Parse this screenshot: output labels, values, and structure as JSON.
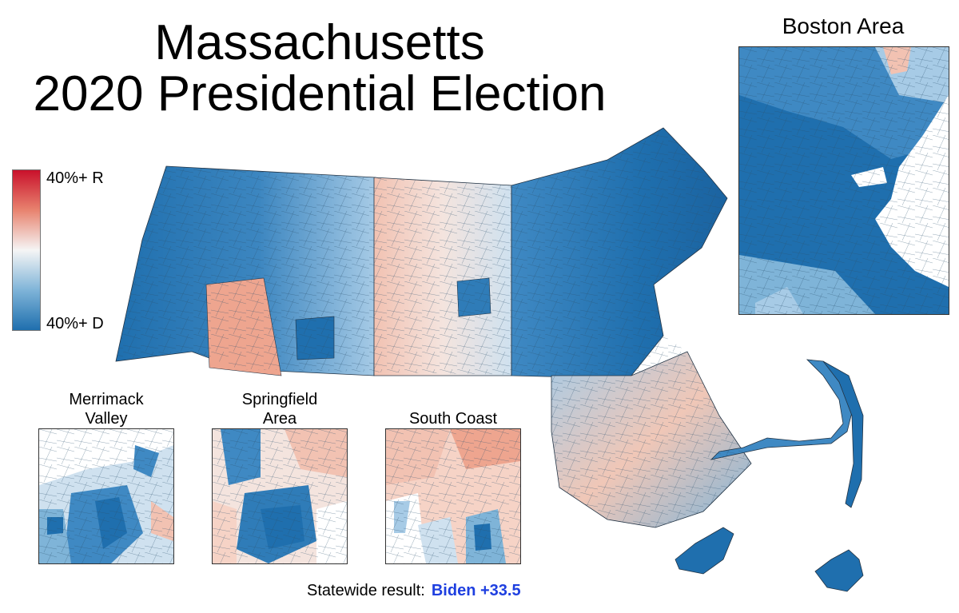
{
  "title": {
    "line1": "Massachusetts",
    "line2": "2020 Presidential Election"
  },
  "legend": {
    "top_label": "40%+ R",
    "bottom_label": "40%+ D",
    "colors": [
      "#c9112b",
      "#e8836f",
      "#f5f5f5",
      "#7fb4d8",
      "#1f6fae"
    ]
  },
  "insets": {
    "boston": "Boston Area",
    "merrimack_line1": "Merrimack",
    "merrimack_line2": "Valley",
    "springfield_line1": "Springfield",
    "springfield_line2": "Area",
    "south_coast": "South Coast"
  },
  "result": {
    "label": "Statewide result:",
    "value": "Biden +33.5",
    "value_color": "#1e3fe0"
  },
  "palette": {
    "dark_blue": "#1f6fae",
    "mid_blue": "#4f92c6",
    "light_blue": "#a7cbe6",
    "pale_blue": "#dbe9f4",
    "white": "#f7f7f7",
    "pale_red": "#f6d3c6",
    "light_red": "#eea58f",
    "ocean": "#ffffff"
  }
}
